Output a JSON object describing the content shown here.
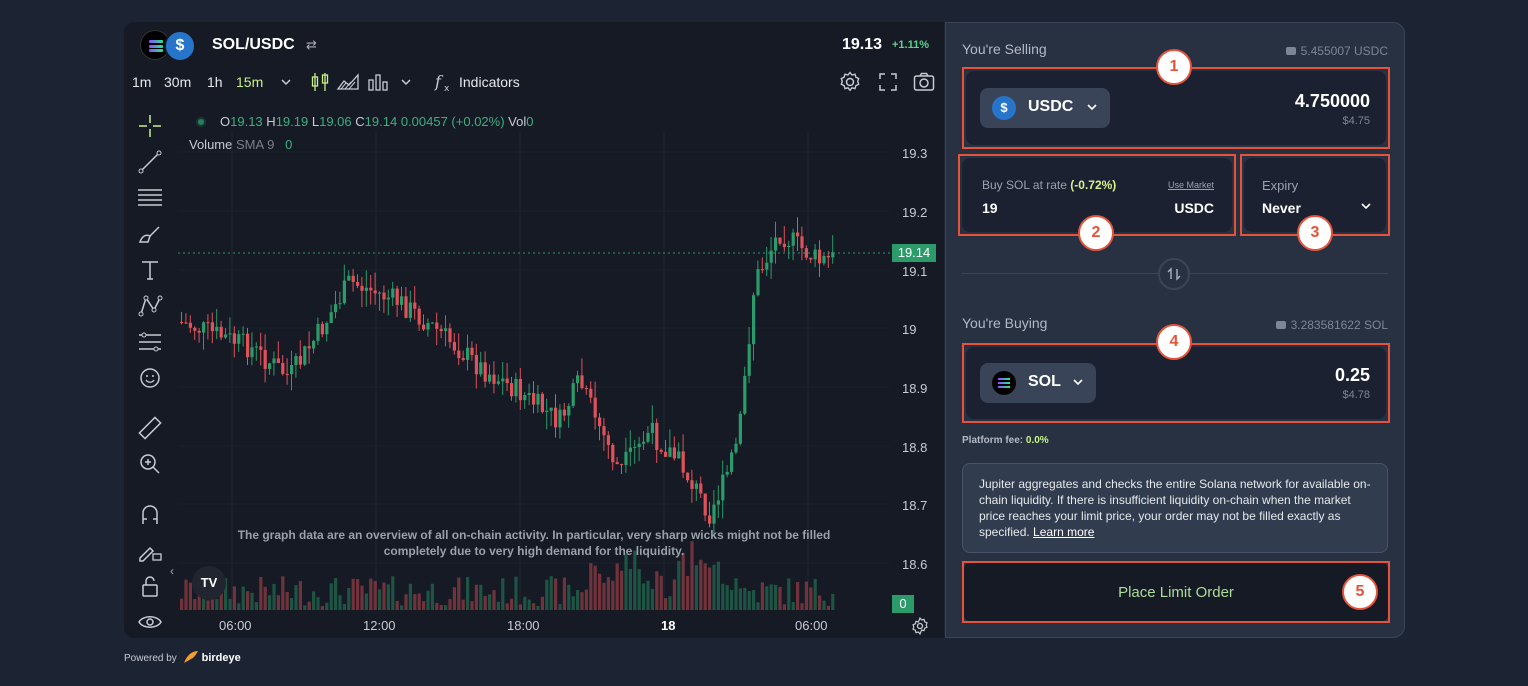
{
  "chart": {
    "pair": "SOL/USDC",
    "swap_glyph": "⇄",
    "price": "19.13",
    "change": "+1.11%",
    "timeframes": [
      "1m",
      "30m",
      "1h",
      "15m"
    ],
    "active_timeframe": "15m",
    "indicators_label": "Indicators",
    "legend": {
      "o_label": "O",
      "o": "19.13",
      "h_label": "H",
      "h": "19.19",
      "l_label": "L",
      "l": "19.06",
      "c_label": "C",
      "c": "19.14",
      "change": "0.00457 (+0.02%)",
      "vol_label": "Vol",
      "vol": "0"
    },
    "volume_legend": {
      "label": "Volume",
      "sma": "SMA 9",
      "value": "0"
    },
    "y_ticks": [
      "19.3",
      "19.2",
      "19.1",
      "19",
      "18.9",
      "18.8",
      "18.7",
      "18.6"
    ],
    "last_price_tag": "19.14",
    "volume_tag": "0",
    "x_ticks": [
      "06:00",
      "12:00",
      "18:00",
      "18",
      "06:00"
    ],
    "disclaimer": "The graph data are an overview of all on-chain activity. In particular, very sharp wicks might not be filled completely due to very high demand for the liquidity.",
    "tv_logo": "TV",
    "collapse_glyph": "‹"
  },
  "powered": {
    "text": "Powered by",
    "brand": "birdeye"
  },
  "form": {
    "selling": {
      "label": "You're Selling",
      "balance": "5.455007 USDC",
      "token": "USDC",
      "token_logo": "$",
      "amount": "4.750000",
      "usd": "$4.75"
    },
    "rate": {
      "label": "Buy SOL at rate",
      "pct": "(-0.72%)",
      "use_market": "Use Market",
      "value": "19",
      "unit": "USDC"
    },
    "expiry": {
      "label": "Expiry",
      "value": "Never"
    },
    "buying": {
      "label": "You're Buying",
      "balance": "3.283581622 SOL",
      "token": "SOL",
      "amount": "0.25",
      "usd": "$4.78"
    },
    "fee": {
      "label": "Platform fee:",
      "value": "0.0%"
    },
    "info": {
      "text": "Jupiter aggregates and checks the entire Solana network for available on-chain liquidity. If there is insufficient liquidity on-chain when the market price reaches your limit price, your order may not be filled exactly as specified.",
      "link": "Learn more"
    },
    "submit": "Place Limit Order"
  },
  "annotations": [
    "1",
    "2",
    "3",
    "4",
    "5"
  ],
  "colors": {
    "annotation": "#e5533b",
    "up": "#2b9b6a",
    "down": "#e0525a",
    "accent": "#c7f284"
  }
}
